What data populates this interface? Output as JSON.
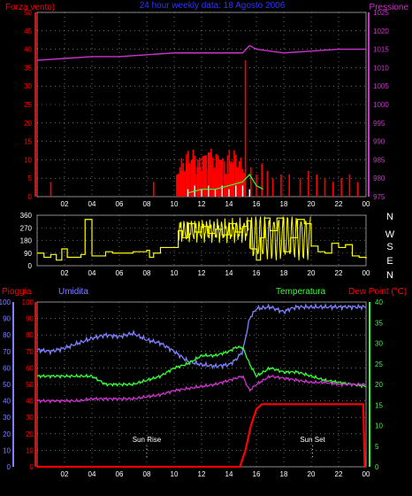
{
  "chart_data": [
    {
      "type": "line",
      "title": "24 hour weekly data: 18 Agosto 2006",
      "left_axis_label": "Forza vento)",
      "right_axis_label": "Pressione",
      "x_tick_labels": [
        "02",
        "04",
        "06",
        "08",
        "10",
        "12",
        "14",
        "16",
        "18",
        "20",
        "22",
        "00"
      ],
      "ylim_left": [
        0,
        50
      ],
      "y_ticks_left": [
        "0",
        "5",
        "10",
        "15",
        "20",
        "25",
        "30",
        "35",
        "40",
        "45",
        "50"
      ],
      "ylim_right": [
        975,
        1025
      ],
      "y_ticks_right": [
        "975",
        "980",
        "985",
        "990",
        "995",
        "1000",
        "1005",
        "1010",
        "1015",
        "1020",
        "1025"
      ],
      "series": [
        {
          "name": "Forza vento)",
          "color": "#ff0000",
          "style": "spikes",
          "x": [
            1.0,
            8.5,
            10.3,
            10.6,
            11.0,
            11.4,
            11.8,
            12.2,
            12.6,
            13.0,
            13.4,
            13.8,
            14.2,
            14.6,
            14.9,
            15.2,
            15.6,
            16.0,
            16.4,
            16.8,
            17.2,
            17.8,
            18.4,
            19.2,
            19.8,
            20.4,
            21.0,
            21.6,
            22.2,
            22.8,
            23.4
          ],
          "values": [
            4,
            4,
            6,
            7,
            9,
            10,
            8,
            11,
            12,
            7,
            10,
            6,
            9,
            8,
            6,
            37,
            8,
            6,
            9,
            7,
            5,
            6,
            6,
            5,
            7,
            6,
            5,
            4,
            5,
            6,
            4
          ]
        },
        {
          "name": "",
          "color": "#ffffff",
          "style": "spikes",
          "x": [
            11,
            11.5,
            12,
            12.5,
            13,
            13.5,
            14,
            14.5,
            15,
            15.5
          ],
          "values": [
            2,
            3,
            2,
            3,
            2,
            3,
            2,
            3,
            3,
            2
          ]
        },
        {
          "name": "",
          "color": "#33ff33",
          "style": "line",
          "x": [
            11,
            12,
            13,
            14,
            15,
            15.5,
            16,
            16.5
          ],
          "values": [
            1,
            2,
            2,
            3,
            4,
            6,
            3,
            2
          ]
        },
        {
          "name": "Pressione",
          "color": "#cc33cc",
          "axis": "right",
          "style": "line",
          "x": [
            0,
            2,
            4,
            6,
            8,
            10,
            12,
            14,
            15,
            15.5,
            16,
            18,
            20,
            22,
            24
          ],
          "values": [
            1012,
            1012.5,
            1013,
            1013,
            1013.5,
            1014,
            1014,
            1014,
            1014,
            1016,
            1015,
            1014,
            1014.5,
            1015,
            1015
          ]
        }
      ]
    },
    {
      "type": "line",
      "title": "",
      "x_tick_labels": [
        "02",
        "04",
        "06",
        "08",
        "10",
        "12",
        "14",
        "16",
        "18",
        "20",
        "22",
        "00"
      ],
      "ylim": [
        0,
        360
      ],
      "y_ticks": [
        "0",
        "90",
        "180",
        "270",
        "360"
      ],
      "compass_labels": [
        "N",
        "W",
        "S",
        "E",
        "N"
      ],
      "series": [
        {
          "name": "",
          "color": "#ffff00",
          "x": [
            0,
            0.5,
            1,
            1.4,
            1.8,
            2.2,
            2.6,
            3,
            3.2,
            3.5,
            4,
            5,
            5.5,
            6,
            7,
            8,
            8.2,
            8.5,
            9,
            10,
            10.3,
            10.6,
            11,
            11.5,
            12,
            12.5,
            13,
            13.5,
            14,
            14.5,
            15,
            15.3,
            15.6,
            16,
            16.3,
            16.6,
            17,
            17.5,
            18,
            18.5,
            19,
            19.5,
            20,
            20.5,
            21,
            21.5,
            22,
            22.5,
            23,
            23.5,
            24
          ],
          "values": [
            90,
            60,
            80,
            40,
            120,
            60,
            60,
            60,
            80,
            330,
            70,
            100,
            90,
            90,
            100,
            110,
            60,
            90,
            130,
            130,
            250,
            200,
            300,
            240,
            280,
            230,
            260,
            220,
            300,
            240,
            280,
            320,
            120,
            40,
            200,
            340,
            250,
            340,
            100,
            200,
            330,
            300,
            140,
            100,
            90,
            160,
            130,
            150,
            70,
            60,
            50
          ]
        }
      ]
    },
    {
      "type": "line",
      "title": "",
      "axis_labels": {
        "pioggia": "Pioggia",
        "umidita": "Umidita",
        "temperatura": "Temperatura",
        "dewpoint": "Dew Point (°C)"
      },
      "x_tick_labels": [
        "02",
        "04",
        "06",
        "08",
        "10",
        "12",
        "14",
        "16",
        "18",
        "20",
        "22",
        "00"
      ],
      "y_ticks_pioggia": [
        "0",
        "10",
        "20",
        "30",
        "40",
        "50",
        "60",
        "70",
        "80",
        "90",
        "100"
      ],
      "y_ticks_right": [
        "0",
        "5",
        "10",
        "15",
        "20",
        "25",
        "30",
        "35",
        "40"
      ],
      "annotations": [
        {
          "text": "Sun Rise",
          "x": 8.0
        },
        {
          "text": "Sun Set",
          "x": 20.1
        }
      ],
      "series": [
        {
          "name": "Umidita",
          "color": "#8080ff",
          "scale": "0-100",
          "x": [
            0,
            1,
            2,
            3,
            4,
            5,
            6,
            7,
            8,
            9,
            10,
            11,
            12,
            13,
            14,
            14.5,
            15,
            15.5,
            16,
            17,
            18,
            18.5,
            19,
            20,
            21,
            22,
            23,
            24
          ],
          "values": [
            71,
            70,
            72,
            75,
            78,
            80,
            79,
            81,
            77,
            75,
            70,
            64,
            62,
            61,
            62,
            65,
            70,
            90,
            96,
            97,
            94,
            96,
            97,
            97,
            97,
            97,
            97,
            97
          ]
        },
        {
          "name": "Temperatura",
          "color": "#33ff33",
          "scale": "0-40",
          "x": [
            0,
            1,
            2,
            3,
            4,
            5,
            6,
            7,
            8,
            9,
            10,
            11,
            12,
            13,
            14,
            14.5,
            15,
            15.5,
            16,
            17,
            18,
            19,
            20,
            21,
            22,
            23,
            24
          ],
          "values": [
            22,
            22,
            22,
            22,
            22,
            20,
            20,
            20,
            21,
            22,
            24,
            25,
            27,
            27,
            28,
            29,
            29,
            25,
            22,
            24,
            23,
            23,
            22,
            21,
            20.5,
            20,
            19.5
          ]
        },
        {
          "name": "Dew Point (°C)",
          "color": "#cc33cc",
          "scale": "0-40",
          "x": [
            0,
            1,
            2,
            3,
            4,
            5,
            6,
            7,
            8,
            9,
            10,
            11,
            12,
            13,
            14,
            15,
            15.5,
            16,
            17,
            18,
            19,
            20,
            21,
            22,
            23,
            24
          ],
          "values": [
            16,
            16,
            16,
            16,
            16.5,
            16.5,
            16.5,
            16.5,
            17,
            17.5,
            18.5,
            19,
            19.5,
            20,
            21,
            22,
            18.5,
            20,
            22,
            21.5,
            21,
            20.5,
            20.5,
            20,
            20,
            20
          ]
        },
        {
          "name": "Pioggia",
          "color": "#ff0000",
          "scale": "0-100",
          "x": [
            0,
            14.8,
            15.2,
            15.6,
            16.0,
            16.4,
            23.8,
            23.9,
            24
          ],
          "values": [
            0,
            0,
            10,
            25,
            35,
            38,
            38,
            0,
            0
          ]
        }
      ]
    }
  ]
}
